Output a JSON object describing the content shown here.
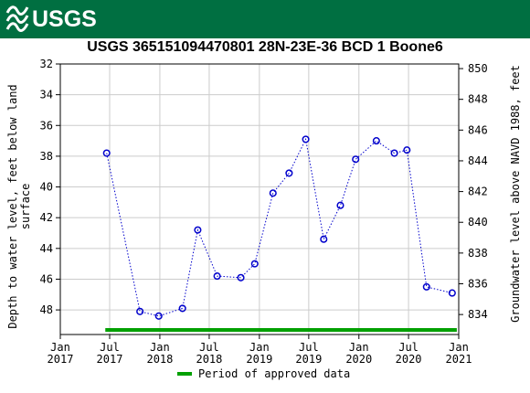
{
  "header": {
    "logo_text": "USGS"
  },
  "chart_data": {
    "type": "scatter",
    "title": "USGS 365151094470801 28N-23E-36 BCD 1 Boone6",
    "ylabel_left": "Depth to water level, feet below land surface",
    "ylabel_left_lines": [
      "Depth to water level, feet below land",
      "surface"
    ],
    "ylabel_right": "Groundwater level above NAVD 1988, feet",
    "y_left": {
      "min": 32,
      "max": 49.6,
      "inverted": true,
      "ticks": [
        32,
        34,
        36,
        38,
        40,
        42,
        44,
        46,
        48
      ]
    },
    "y_right": {
      "ticks": [
        834,
        836,
        838,
        840,
        842,
        844,
        846,
        848,
        850
      ],
      "datum_offset": 882.3
    },
    "x": {
      "start": "2017-01-01",
      "end": "2021-01-01",
      "ticks": [
        {
          "date": "2017-01-01",
          "label1": "Jan",
          "label2": "2017"
        },
        {
          "date": "2017-07-01",
          "label1": "Jul",
          "label2": "2017"
        },
        {
          "date": "2018-01-01",
          "label1": "Jan",
          "label2": "2018"
        },
        {
          "date": "2018-07-01",
          "label1": "Jul",
          "label2": "2018"
        },
        {
          "date": "2019-01-01",
          "label1": "Jan",
          "label2": "2019"
        },
        {
          "date": "2019-07-01",
          "label1": "Jul",
          "label2": "2019"
        },
        {
          "date": "2020-01-01",
          "label1": "Jan",
          "label2": "2020"
        },
        {
          "date": "2020-07-01",
          "label1": "Jul",
          "label2": "2020"
        },
        {
          "date": "2021-01-01",
          "label1": "Jan",
          "label2": "2021"
        }
      ]
    },
    "grid": true,
    "series": [
      {
        "points": [
          {
            "date": "2017-06-20",
            "depth": 37.8
          },
          {
            "date": "2017-10-20",
            "depth": 48.1
          },
          {
            "date": "2017-12-28",
            "depth": 48.4
          },
          {
            "date": "2018-03-25",
            "depth": 47.9
          },
          {
            "date": "2018-05-20",
            "depth": 42.8
          },
          {
            "date": "2018-07-30",
            "depth": 45.8
          },
          {
            "date": "2018-10-25",
            "depth": 45.9
          },
          {
            "date": "2018-12-15",
            "depth": 45.0
          },
          {
            "date": "2019-02-20",
            "depth": 40.4
          },
          {
            "date": "2019-04-20",
            "depth": 39.1
          },
          {
            "date": "2019-06-20",
            "depth": 36.9
          },
          {
            "date": "2019-08-25",
            "depth": 43.4
          },
          {
            "date": "2019-10-25",
            "depth": 41.2
          },
          {
            "date": "2019-12-20",
            "depth": 38.2
          },
          {
            "date": "2020-03-05",
            "depth": 37.0
          },
          {
            "date": "2020-05-10",
            "depth": 37.8
          },
          {
            "date": "2020-06-25",
            "depth": 37.6
          },
          {
            "date": "2020-09-05",
            "depth": 46.5
          },
          {
            "date": "2020-12-08",
            "depth": 46.9
          }
        ],
        "marker_color": "#0000cc",
        "line_style": "dotted"
      }
    ],
    "approved_period": {
      "start": "2017-06-15",
      "end": "2020-12-25",
      "color": "#00a000"
    },
    "legend": {
      "label": "Period of approved data",
      "placement": "bottom-center"
    }
  }
}
